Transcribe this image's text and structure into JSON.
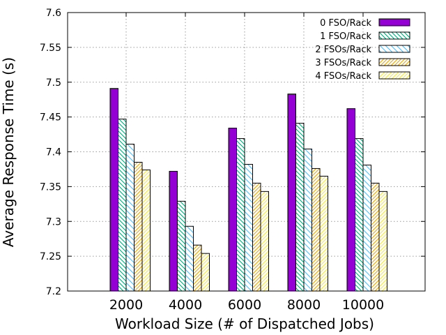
{
  "chart_data": {
    "type": "bar",
    "title": "",
    "xlabel": "Workload Size (# of Dispatched Jobs)",
    "ylabel": "Average Response Time (s)",
    "categories": [
      "2000",
      "4000",
      "6000",
      "8000",
      "10000"
    ],
    "ylim": [
      7.2,
      7.6
    ],
    "yticks": [
      "7.2",
      "7.25",
      "7.3",
      "7.35",
      "7.4",
      "7.45",
      "7.5",
      "7.55",
      "7.6"
    ],
    "grid": true,
    "legend_position": "top-right",
    "series": [
      {
        "name": "0 FSO/Rack",
        "values": [
          7.491,
          7.372,
          7.434,
          7.483,
          7.462
        ],
        "color": "#9400D3",
        "pattern": "solid"
      },
      {
        "name": "1 FSO/Rack",
        "values": [
          7.447,
          7.329,
          7.419,
          7.441,
          7.419
        ],
        "color": "#009E73",
        "pattern": "hatch-dense"
      },
      {
        "name": "2 FSOs/Rack",
        "values": [
          7.411,
          7.293,
          7.382,
          7.404,
          7.381
        ],
        "color": "#56B4E9",
        "pattern": "hatch-sparse"
      },
      {
        "name": "3 FSOs/Rack",
        "values": [
          7.385,
          7.266,
          7.355,
          7.376,
          7.355
        ],
        "color": "#E69F00",
        "pattern": "hatch-reverse"
      },
      {
        "name": "4 FSOs/Rack",
        "values": [
          7.374,
          7.254,
          7.343,
          7.365,
          7.343
        ],
        "color": "#F0E442",
        "pattern": "hatch-light"
      }
    ]
  }
}
